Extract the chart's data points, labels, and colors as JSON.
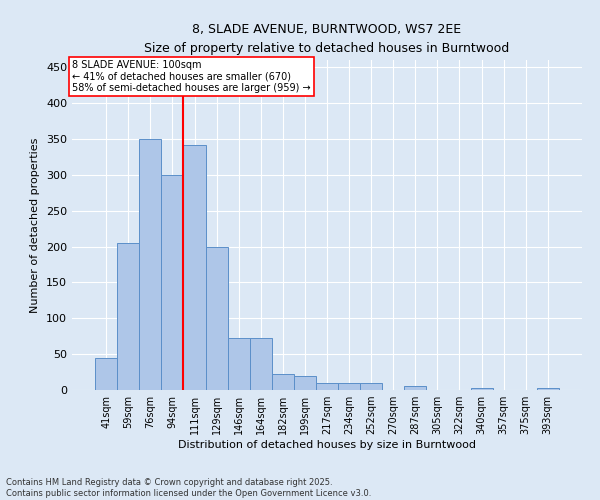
{
  "title1": "8, SLADE AVENUE, BURNTWOOD, WS7 2EE",
  "title2": "Size of property relative to detached houses in Burntwood",
  "xlabel": "Distribution of detached houses by size in Burntwood",
  "ylabel": "Number of detached properties",
  "categories": [
    "41sqm",
    "59sqm",
    "76sqm",
    "94sqm",
    "111sqm",
    "129sqm",
    "146sqm",
    "164sqm",
    "182sqm",
    "199sqm",
    "217sqm",
    "234sqm",
    "252sqm",
    "270sqm",
    "287sqm",
    "305sqm",
    "322sqm",
    "340sqm",
    "357sqm",
    "375sqm",
    "393sqm"
  ],
  "values": [
    45,
    205,
    350,
    300,
    342,
    200,
    73,
    73,
    22,
    20,
    10,
    10,
    10,
    0,
    5,
    0,
    0,
    3,
    0,
    0,
    3
  ],
  "bar_color": "#aec6e8",
  "bar_edge_color": "#5b8fc9",
  "bg_color": "#dce8f5",
  "vline_x": 3.5,
  "vline_color": "red",
  "annotation_line1": "8 SLADE AVENUE: 100sqm",
  "annotation_line2": "← 41% of detached houses are smaller (670)",
  "annotation_line3": "58% of semi-detached houses are larger (959) →",
  "ylim": [
    0,
    460
  ],
  "yticks": [
    0,
    50,
    100,
    150,
    200,
    250,
    300,
    350,
    400,
    450
  ],
  "footer1": "Contains HM Land Registry data © Crown copyright and database right 2025.",
  "footer2": "Contains public sector information licensed under the Open Government Licence v3.0."
}
